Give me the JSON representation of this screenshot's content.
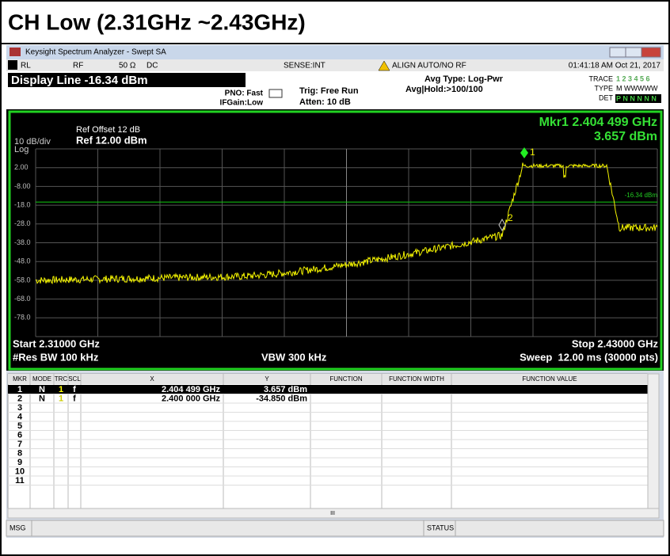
{
  "heading": "CH Low (2.31GHz ~2.43GHz)",
  "window_title": "Keysight Spectrum Analyzer - Swept SA",
  "status_bar": {
    "rl": "RL",
    "rf": "RF",
    "impedance": "50 Ω",
    "coupling": "DC",
    "sense": "SENSE:INT",
    "align": "ALIGN AUTO/NO RF",
    "datetime": "01:41:18 AM Oct 21, 2017"
  },
  "settings": {
    "display_line": "Display Line -16.34 dBm",
    "pno": "PNO: Fast",
    "ifgain": "IFGain:Low",
    "trig": "Trig: Free Run",
    "atten": "Atten: 10 dB",
    "avg_type": "Avg Type: Log-Pwr",
    "avg_hold": "Avg|Hold:>100/100",
    "trace_label": "TRACE",
    "trace_nums": "1 2 3 4 5 6",
    "type_label": "TYPE",
    "type_value": "M WWWWW",
    "det_label": "DET",
    "det_value": "P N N N N N"
  },
  "graph": {
    "ref_offset": "Ref Offset 12 dB",
    "scale": "10 dB/div",
    "ref_level": "Ref 12.00 dBm",
    "log": "Log",
    "marker_freq": "Mkr1 2.404 499 GHz",
    "marker_level": "3.657 dBm",
    "y_labels": [
      "2.00",
      "-8.00",
      "-18.0",
      "-28.0",
      "-38.0",
      "-48.0",
      "-58.0",
      "-68.0",
      "-78.0"
    ],
    "display_line_label": "-16.34 dBm",
    "marker_labels": [
      "1",
      "2"
    ],
    "start": "Start 2.31000 GHz",
    "stop": "Stop 2.43000 GHz",
    "rbw": "#Res BW 100 kHz",
    "vbw": "VBW 300 kHz",
    "sweep": "Sweep  12.00 ms (30000 pts)"
  },
  "marker_table": {
    "headers": [
      "MKR",
      "MODE",
      "TRC",
      "SCL",
      "X",
      "Y",
      "FUNCTION",
      "FUNCTION WIDTH",
      "FUNCTION VALUE"
    ],
    "rows": [
      [
        "1",
        "N",
        "1",
        "f",
        "2.404 499 GHz",
        "3.657 dBm"
      ],
      [
        "2",
        "N",
        "1",
        "f",
        "2.400 000 GHz",
        "-34.850 dBm"
      ],
      [
        "3"
      ],
      [
        "4"
      ],
      [
        "5"
      ],
      [
        "6"
      ],
      [
        "7"
      ],
      [
        "8"
      ],
      [
        "9"
      ],
      [
        "10"
      ],
      [
        "11"
      ]
    ]
  },
  "scroll_label": "III",
  "footer": {
    "msg": "MSG",
    "status": "STATUS"
  }
}
